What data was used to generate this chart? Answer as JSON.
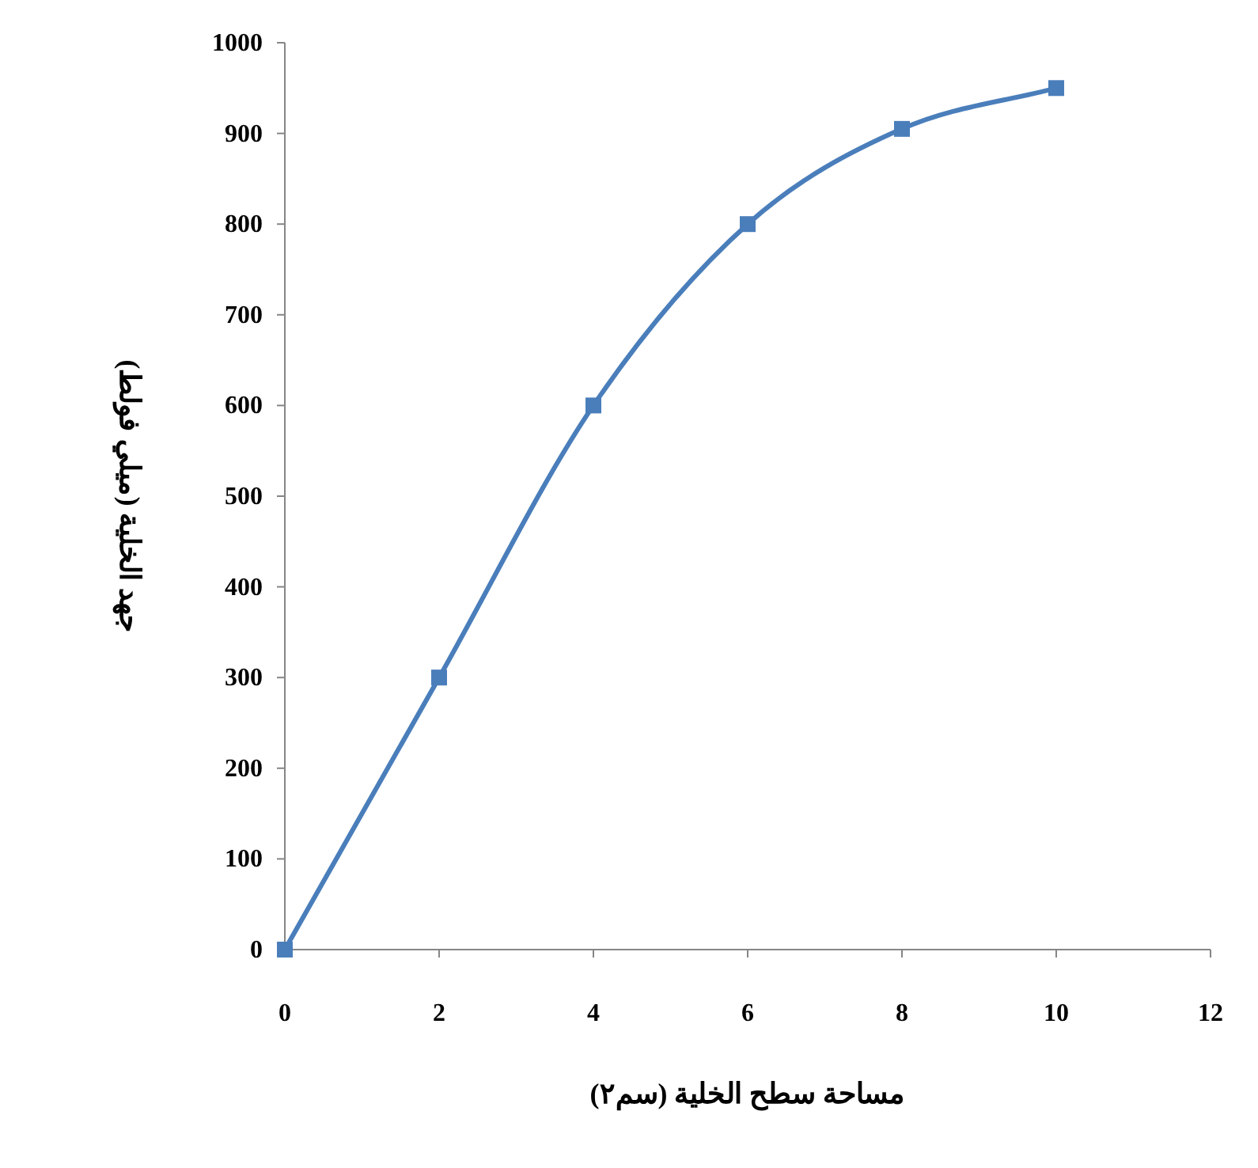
{
  "chart_data": {
    "type": "line",
    "xlabel": "مساحة سطح الخلية (سم٢)",
    "ylabel": "جهد الخلية (ميلي فولط)",
    "x": [
      0,
      2,
      4,
      6,
      8,
      10
    ],
    "series": [
      {
        "color": "#4a7ebb",
        "values": [
          0,
          300,
          600,
          800,
          905,
          950
        ]
      }
    ],
    "xlim": [
      0,
      12
    ],
    "xticks": [
      0,
      2,
      4,
      6,
      8,
      10,
      12
    ],
    "ylim": [
      0,
      1000
    ],
    "yticks": [
      0,
      100,
      200,
      300,
      400,
      500,
      600,
      700,
      800,
      900,
      1000
    ],
    "marker": "square",
    "line_style": "solid"
  }
}
